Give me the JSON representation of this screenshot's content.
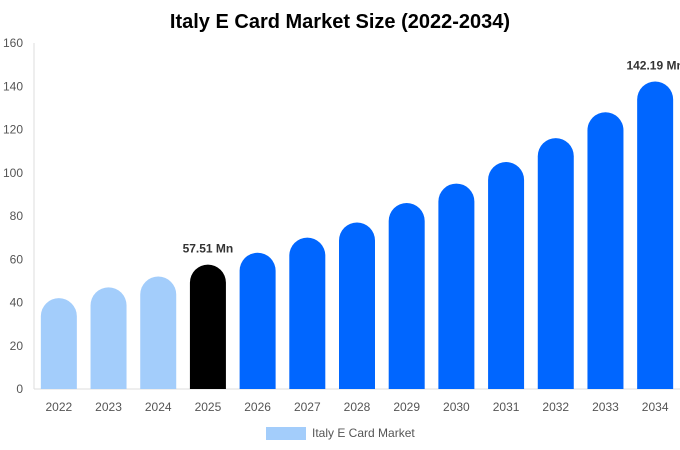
{
  "chart_data": {
    "type": "bar",
    "title": "Italy E Card Market Size (2022-2034)",
    "categories": [
      "2022",
      "2023",
      "2024",
      "2025",
      "2026",
      "2027",
      "2028",
      "2029",
      "2030",
      "2031",
      "2032",
      "2033",
      "2034"
    ],
    "series": [
      {
        "name": "Italy E Card Market",
        "values": [
          42,
          47,
          52,
          57.51,
          63,
          70,
          77,
          86,
          95,
          105,
          116,
          128,
          142.19
        ]
      }
    ],
    "ylim": [
      0,
      160
    ],
    "yticks": [
      0,
      20,
      40,
      60,
      80,
      100,
      120,
      140,
      160
    ],
    "data_labels": [
      {
        "index": 3,
        "text": "57.51 Mn"
      },
      {
        "index": 12,
        "text": "142.19 Mn"
      }
    ],
    "bar_colors": {
      "history": "#a3cdfb",
      "current": "#000000",
      "forecast": "#0066ff"
    },
    "current_index": 3,
    "grid": false,
    "legend": {
      "position": "bottom",
      "label": "Italy E Card Market",
      "color": "#a3cdfb"
    }
  }
}
